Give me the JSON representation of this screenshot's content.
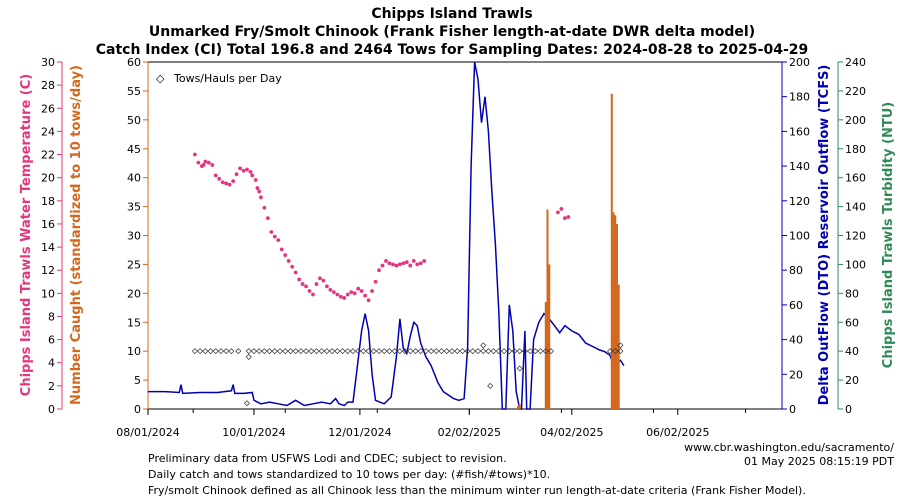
{
  "chart_data": {
    "type": "line",
    "title_lines": [
      "Chipps Island Trawls",
      "Unmarked Fry/Smolt Chinook (Frank Fisher length-at-date DWR delta model)",
      "Catch Index (CI) Total 196.8 and 2464 Tows for Sampling Dates: 2024-08-28 to 2025-04-29"
    ],
    "x_ticks": [
      "08/01/2024",
      "10/01/2024",
      "12/01/2024",
      "02/02/2025",
      "04/02/2025",
      "06/02/2025"
    ],
    "x_tick_days": [
      0,
      61,
      122,
      185,
      244,
      305
    ],
    "x_range": [
      0,
      365
    ],
    "legend": {
      "label": "Tows/Hauls per Day",
      "position": "top-left",
      "symbol": "◇"
    },
    "axes": {
      "temperature": {
        "label": "Chipps Island Trawls Water Temperature (C)",
        "range": [
          0,
          30
        ],
        "ticks": [
          0,
          2,
          4,
          6,
          8,
          10,
          12,
          14,
          16,
          18,
          20,
          22,
          24,
          26,
          28,
          30
        ],
        "color": "#e6357f"
      },
      "catch": {
        "label": "Number Caught (standardized to 10 tows/day)",
        "range": [
          0,
          60
        ],
        "ticks": [
          0,
          5,
          10,
          15,
          20,
          25,
          30,
          35,
          40,
          45,
          50,
          55,
          60
        ],
        "color": "#d2691e"
      },
      "outflow": {
        "label": "Delta OutFlow (DTO) Reservoir Outflow (TCFS)",
        "range": [
          0,
          200
        ],
        "ticks": [
          0,
          20,
          40,
          60,
          80,
          100,
          120,
          140,
          160,
          180,
          200
        ],
        "color": "#0000b3"
      },
      "turbidity": {
        "label": "Chipps Island Trawls Turbidity (NTU)",
        "range": [
          0,
          240
        ],
        "ticks": [
          0,
          20,
          40,
          60,
          80,
          100,
          120,
          140,
          160,
          180,
          200,
          220,
          240
        ],
        "color": "#2e8b57"
      }
    },
    "series": [
      {
        "name": "Delta OutFlow (DTO)",
        "axis": "outflow",
        "points": [
          [
            0,
            10
          ],
          [
            10,
            10
          ],
          [
            18,
            9.5
          ],
          [
            19,
            14
          ],
          [
            20,
            9
          ],
          [
            30,
            9.5
          ],
          [
            40,
            9.5
          ],
          [
            48,
            10.5
          ],
          [
            49,
            14
          ],
          [
            50,
            9
          ],
          [
            55,
            9
          ],
          [
            60,
            9.5
          ],
          [
            61,
            5
          ],
          [
            65,
            3
          ],
          [
            70,
            4
          ],
          [
            75,
            3
          ],
          [
            80,
            2
          ],
          [
            85,
            5
          ],
          [
            90,
            2
          ],
          [
            95,
            3
          ],
          [
            100,
            4
          ],
          [
            105,
            3
          ],
          [
            108,
            6
          ],
          [
            110,
            3
          ],
          [
            113,
            2
          ],
          [
            115,
            4
          ],
          [
            118,
            4
          ],
          [
            120,
            20
          ],
          [
            123,
            45
          ],
          [
            125,
            55
          ],
          [
            127,
            45
          ],
          [
            129,
            20
          ],
          [
            131,
            5
          ],
          [
            136,
            3
          ],
          [
            140,
            7
          ],
          [
            143,
            30
          ],
          [
            145,
            52
          ],
          [
            147,
            35
          ],
          [
            149,
            32
          ],
          [
            151,
            42
          ],
          [
            153,
            50
          ],
          [
            155,
            48
          ],
          [
            157,
            38
          ],
          [
            160,
            30
          ],
          [
            163,
            25
          ],
          [
            167,
            15
          ],
          [
            170,
            10
          ],
          [
            173,
            8
          ],
          [
            176,
            6
          ],
          [
            179,
            5
          ],
          [
            182,
            6
          ],
          [
            184,
            35
          ],
          [
            186,
            140
          ],
          [
            188,
            200
          ],
          [
            190,
            190
          ],
          [
            192,
            165
          ],
          [
            194,
            180
          ],
          [
            196,
            160
          ],
          [
            198,
            125
          ],
          [
            200,
            95
          ],
          [
            202,
            55
          ],
          [
            204,
            0
          ],
          [
            206,
            0
          ],
          [
            208,
            60
          ],
          [
            210,
            45
          ],
          [
            212,
            10
          ],
          [
            214,
            0
          ],
          [
            215,
            0
          ],
          [
            217,
            45
          ],
          [
            218,
            0
          ],
          [
            220,
            0
          ],
          [
            222,
            40
          ],
          [
            225,
            50
          ],
          [
            228,
            55
          ],
          [
            231,
            52
          ],
          [
            234,
            48
          ],
          [
            237,
            44
          ],
          [
            240,
            48
          ],
          [
            244,
            45
          ],
          [
            248,
            43
          ],
          [
            252,
            38
          ],
          [
            256,
            36
          ],
          [
            260,
            34
          ],
          [
            263,
            33
          ],
          [
            266,
            31
          ],
          [
            268,
            25
          ],
          [
            270,
            27
          ],
          [
            272,
            28
          ],
          [
            274,
            25
          ]
        ]
      },
      {
        "name": "Water Temperature (C)",
        "axis": "temperature",
        "points": [
          [
            27,
            22
          ],
          [
            29,
            21.3
          ],
          [
            31,
            21
          ],
          [
            32,
            21.1
          ],
          [
            33,
            21.4
          ],
          [
            35,
            21.3
          ],
          [
            37,
            21.1
          ],
          [
            39,
            20.2
          ],
          [
            41,
            19.9
          ],
          [
            43,
            19.6
          ],
          [
            45,
            19.5
          ],
          [
            47,
            19.4
          ],
          [
            49,
            19.7
          ],
          [
            51,
            20.3
          ],
          [
            53,
            20.8
          ],
          [
            55,
            20.6
          ],
          [
            57,
            20.7
          ],
          [
            59,
            20.5
          ],
          [
            60,
            20.2
          ],
          [
            62,
            19.8
          ],
          [
            63,
            19.1
          ],
          [
            64,
            18.8
          ],
          [
            65,
            18.3
          ],
          [
            67,
            17.4
          ],
          [
            69,
            16.5
          ],
          [
            71,
            15.3
          ],
          [
            73,
            14.9
          ],
          [
            75,
            14.6
          ],
          [
            77,
            13.8
          ],
          [
            79,
            13.3
          ],
          [
            81,
            12.8
          ],
          [
            83,
            12.3
          ],
          [
            85,
            11.8
          ],
          [
            87,
            11.2
          ],
          [
            89,
            10.8
          ],
          [
            91,
            10.6
          ],
          [
            93,
            10.2
          ],
          [
            95,
            9.9
          ],
          [
            97,
            10.8
          ],
          [
            99,
            11.3
          ],
          [
            101,
            11.1
          ],
          [
            103,
            10.6
          ],
          [
            105,
            10.3
          ],
          [
            107,
            10.1
          ],
          [
            109,
            9.9
          ],
          [
            111,
            9.7
          ],
          [
            113,
            9.6
          ],
          [
            115,
            9.9
          ],
          [
            117,
            10.1
          ],
          [
            119,
            10.0
          ],
          [
            121,
            10.4
          ],
          [
            123,
            10.2
          ],
          [
            125,
            9.8
          ],
          [
            127,
            9.4
          ],
          [
            129,
            10.2
          ],
          [
            131,
            11.0
          ],
          [
            133,
            12.0
          ],
          [
            135,
            12.4
          ],
          [
            137,
            12.8
          ],
          [
            139,
            12.6
          ],
          [
            141,
            12.5
          ],
          [
            143,
            12.4
          ],
          [
            145,
            12.5
          ],
          [
            147,
            12.6
          ],
          [
            149,
            12.7
          ],
          [
            151,
            12.4
          ],
          [
            153,
            12.8
          ],
          [
            155,
            12.5
          ],
          [
            157,
            12.6
          ],
          [
            159,
            12.8
          ],
          [
            236,
            17
          ],
          [
            238,
            17.3
          ],
          [
            240,
            16.5
          ],
          [
            242,
            16.6
          ]
        ]
      },
      {
        "name": "Number Caught (standardized)",
        "axis": "catch",
        "type": "bar",
        "points": [
          [
            213,
            0.5
          ],
          [
            214,
            0.8
          ],
          [
            230,
            34.5
          ],
          [
            229,
            18.5
          ],
          [
            267,
            54.5
          ],
          [
            268,
            34
          ],
          [
            269,
            33.5
          ],
          [
            270,
            32
          ],
          [
            271,
            21.5
          ],
          [
            231,
            25
          ]
        ]
      },
      {
        "name": "Tows/Hauls per Day",
        "axis": "catch",
        "type": "scatter",
        "points": [
          [
            27,
            10
          ],
          [
            30,
            10
          ],
          [
            33,
            10
          ],
          [
            36,
            10
          ],
          [
            39,
            10
          ],
          [
            42,
            10
          ],
          [
            45,
            10
          ],
          [
            48,
            10
          ],
          [
            52,
            10
          ],
          [
            58,
            10
          ],
          [
            61,
            10
          ],
          [
            64,
            10
          ],
          [
            67,
            10
          ],
          [
            70,
            10
          ],
          [
            73,
            10
          ],
          [
            76,
            10
          ],
          [
            79,
            10
          ],
          [
            82,
            10
          ],
          [
            85,
            10
          ],
          [
            88,
            10
          ],
          [
            91,
            10
          ],
          [
            94,
            10
          ],
          [
            97,
            10
          ],
          [
            100,
            10
          ],
          [
            103,
            10
          ],
          [
            106,
            10
          ],
          [
            109,
            10
          ],
          [
            112,
            10
          ],
          [
            115,
            10
          ],
          [
            118,
            10
          ],
          [
            121,
            10
          ],
          [
            124,
            10
          ],
          [
            127,
            10
          ],
          [
            130,
            10
          ],
          [
            133,
            10
          ],
          [
            136,
            10
          ],
          [
            139,
            10
          ],
          [
            142,
            10
          ],
          [
            145,
            10
          ],
          [
            148,
            10
          ],
          [
            151,
            10
          ],
          [
            154,
            10
          ],
          [
            157,
            10
          ],
          [
            160,
            10
          ],
          [
            163,
            10
          ],
          [
            166,
            10
          ],
          [
            169,
            10
          ],
          [
            172,
            10
          ],
          [
            175,
            10
          ],
          [
            178,
            10
          ],
          [
            181,
            10
          ],
          [
            184,
            10
          ],
          [
            187,
            10
          ],
          [
            190,
            10
          ],
          [
            193,
            10
          ],
          [
            196,
            10
          ],
          [
            199,
            10
          ],
          [
            202,
            10
          ],
          [
            205,
            10
          ],
          [
            208,
            10
          ],
          [
            211,
            10
          ],
          [
            214,
            10
          ],
          [
            217,
            10
          ],
          [
            220,
            10
          ],
          [
            223,
            10
          ],
          [
            226,
            10
          ],
          [
            229,
            10
          ],
          [
            232,
            10
          ],
          [
            266,
            10
          ],
          [
            269,
            10
          ],
          [
            272,
            10
          ],
          [
            57,
            1
          ],
          [
            58,
            9
          ],
          [
            197,
            4
          ],
          [
            193,
            11
          ],
          [
            214,
            7
          ],
          [
            272,
            11
          ]
        ]
      }
    ],
    "website": "www.cbr.washington.edu/sacramento/",
    "timestamp": "01 May 2025 08:15:19 PDT",
    "notes": [
      "Preliminary data from USFWS Lodi and CDEC; subject to revision.",
      "Daily catch and tows standardized to 10 tows per day: (#fish/#tows)*10.",
      "Fry/smolt Chinook defined as all Chinook less than the minimum winter run length-at-date criteria (Frank Fisher Model)."
    ]
  }
}
